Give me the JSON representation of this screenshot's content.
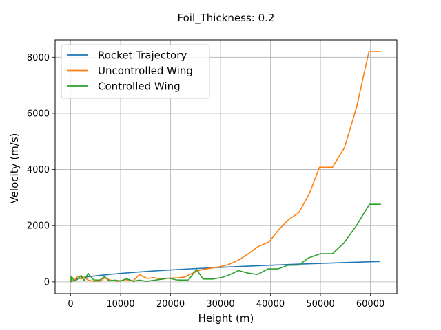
{
  "chart_data": {
    "type": "line",
    "title": "Foil_Thickness: 0.2",
    "xlabel": "Height (m)",
    "ylabel": "Velocity (m/s)",
    "xlim": [
      -3100,
      65300
    ],
    "ylim": [
      -420,
      8620
    ],
    "xticks": [
      0,
      10000,
      20000,
      30000,
      40000,
      50000,
      60000
    ],
    "yticks": [
      0,
      2000,
      4000,
      6000,
      8000
    ],
    "grid": true,
    "legend_position": "top-left",
    "series": [
      {
        "name": "Rocket Trajectory",
        "color": "#1f77b4",
        "x": [
          0,
          1000,
          2000,
          3000,
          4000,
          6000,
          8000,
          10000,
          12000,
          14000,
          16000,
          18000,
          20000,
          22000,
          24000,
          26000,
          28000,
          30000,
          32000,
          34000,
          36000,
          38000,
          40000,
          42000,
          44000,
          46000,
          48000,
          50000,
          52000,
          54000,
          56000,
          58000,
          60000,
          62000
        ],
        "y": [
          0,
          95,
          135,
          165,
          190,
          232,
          267,
          298,
          327,
          353,
          378,
          401,
          422,
          443,
          462,
          480,
          498,
          515,
          531,
          547,
          562,
          577,
          591,
          605,
          618,
          631,
          644,
          656,
          668,
          680,
          692,
          703,
          714,
          725
        ]
      },
      {
        "name": "Uncontrolled Wing",
        "color": "#ff7f0e",
        "x": [
          0,
          200,
          700,
          1500,
          2100,
          2700,
          3500,
          4600,
          6000,
          6800,
          8000,
          9500,
          11000,
          12500,
          13800,
          15300,
          16600,
          18200,
          19500,
          21500,
          22800,
          24300,
          26000,
          27800,
          29700,
          31500,
          33500,
          35500,
          37500,
          39700,
          41500,
          43500,
          45700,
          47800,
          49800,
          52400,
          54800,
          57200,
          59700,
          62100
        ],
        "y": [
          180,
          10,
          60,
          200,
          100,
          170,
          60,
          20,
          30,
          140,
          60,
          20,
          80,
          30,
          260,
          120,
          150,
          90,
          130,
          140,
          170,
          300,
          420,
          480,
          530,
          610,
          760,
          990,
          1250,
          1420,
          1820,
          2200,
          2470,
          3150,
          4080,
          4080,
          4780,
          6200,
          8200,
          8200
        ]
      },
      {
        "name": "Controlled Wing",
        "color": "#2ca02c",
        "x": [
          0,
          200,
          700,
          1300,
          2100,
          2700,
          3500,
          4600,
          5800,
          6800,
          7700,
          8800,
          10000,
          11200,
          12600,
          13700,
          15200,
          16900,
          18400,
          19600,
          21200,
          22600,
          23600,
          25200,
          26500,
          28400,
          30200,
          31800,
          33600,
          35500,
          37400,
          39500,
          41500,
          43500,
          45700,
          47600,
          50000,
          52400,
          54700,
          57200,
          59800,
          62100
        ],
        "y": [
          0,
          200,
          20,
          80,
          230,
          40,
          300,
          70,
          60,
          190,
          30,
          60,
          30,
          110,
          20,
          60,
          20,
          60,
          100,
          130,
          70,
          60,
          70,
          440,
          100,
          100,
          150,
          250,
          400,
          310,
          260,
          460,
          460,
          590,
          600,
          850,
          1000,
          1000,
          1380,
          2000,
          2760,
          2760
        ]
      }
    ]
  }
}
